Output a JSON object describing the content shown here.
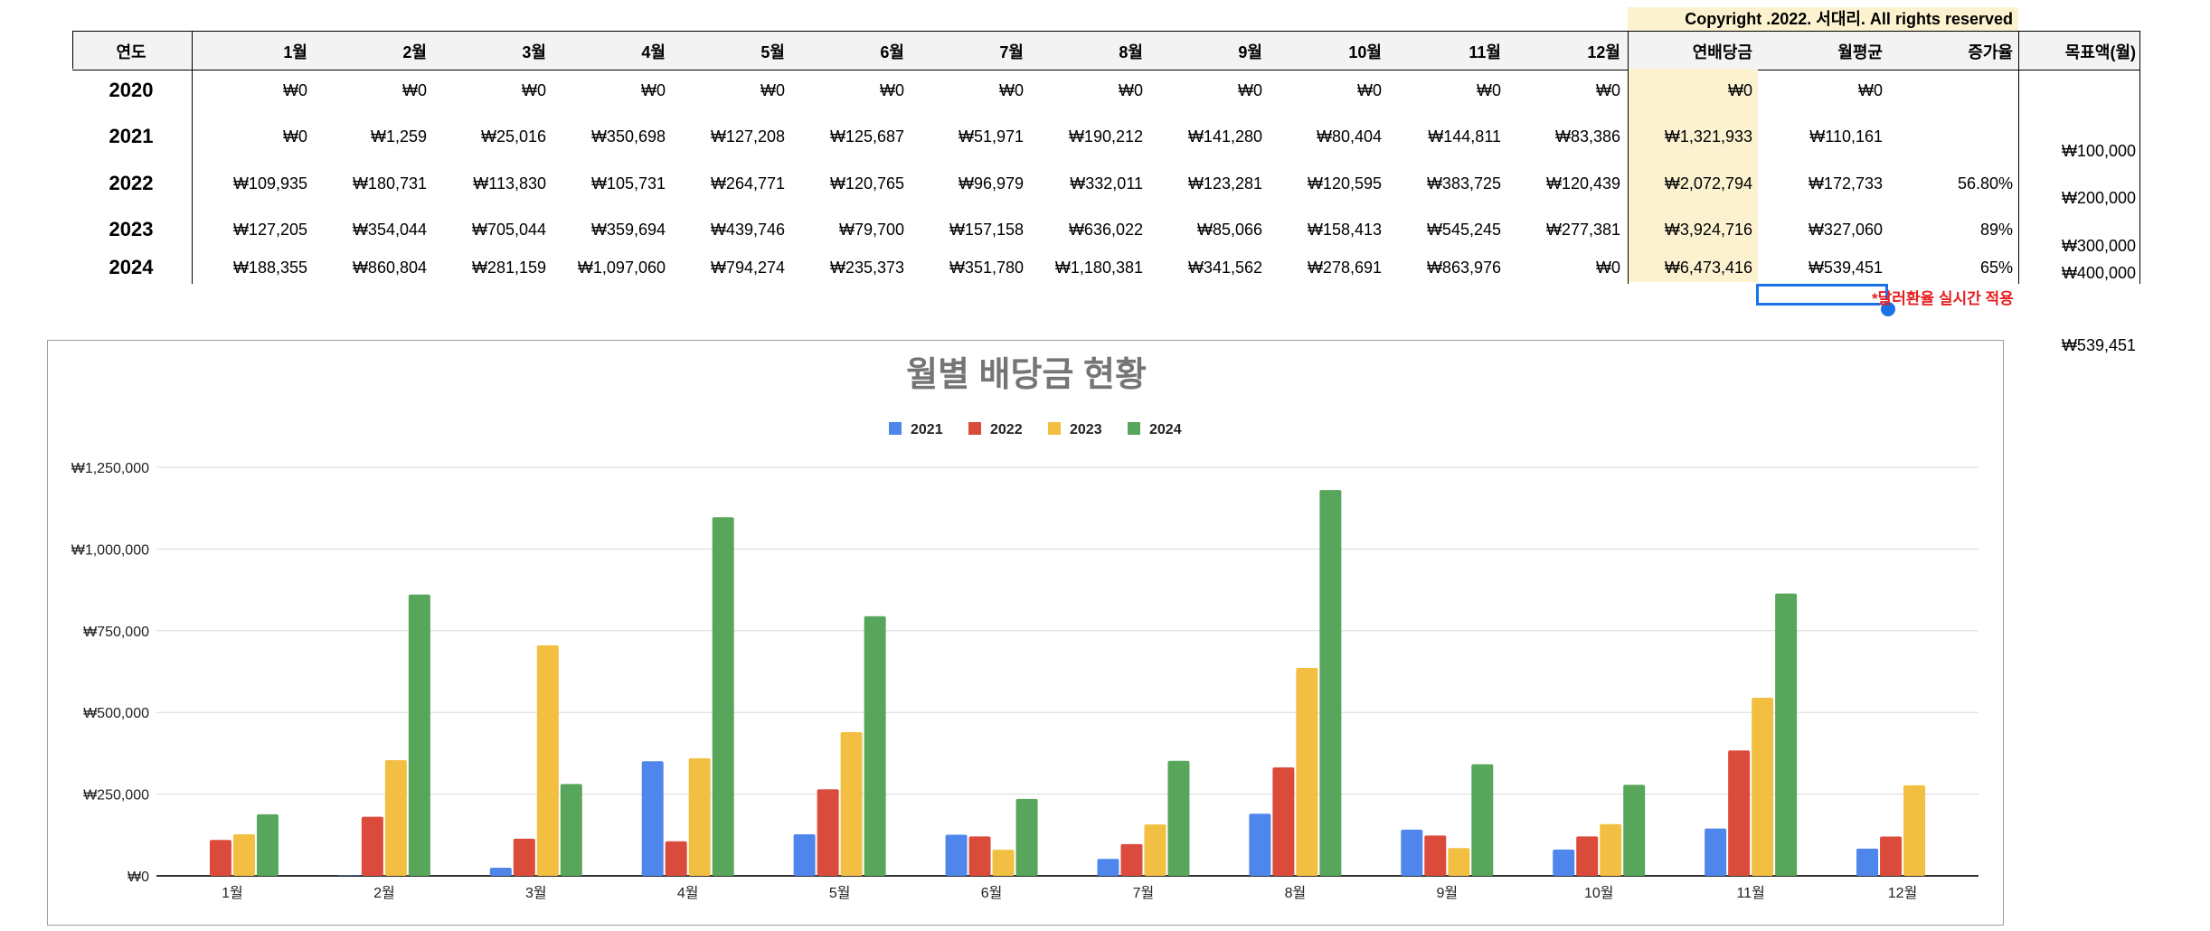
{
  "table": {
    "copyright": "Copyright .2022. 서대리. All rights reserved",
    "headers": [
      "연도",
      "1월",
      "2월",
      "3월",
      "4월",
      "5월",
      "6월",
      "7월",
      "8월",
      "9월",
      "10월",
      "11월",
      "12월",
      "연배당금",
      "월평균",
      "증가율",
      "목표액(월)"
    ],
    "rows": [
      {
        "year": "2020",
        "cells": [
          "₩0",
          "₩0",
          "₩0",
          "₩0",
          "₩0",
          "₩0",
          "₩0",
          "₩0",
          "₩0",
          "₩0",
          "₩0",
          "₩0",
          "₩0",
          "₩0",
          ""
        ]
      },
      {
        "year": "2021",
        "cells": [
          "₩0",
          "₩1,259",
          "₩25,016",
          "₩350,698",
          "₩127,208",
          "₩125,687",
          "₩51,971",
          "₩190,212",
          "₩141,280",
          "₩80,404",
          "₩144,811",
          "₩83,386",
          "₩1,321,933",
          "₩110,161",
          ""
        ]
      },
      {
        "year": "2022",
        "cells": [
          "₩109,935",
          "₩180,731",
          "₩113,830",
          "₩105,731",
          "₩264,771",
          "₩120,765",
          "₩96,979",
          "₩332,011",
          "₩123,281",
          "₩120,595",
          "₩383,725",
          "₩120,439",
          "₩2,072,794",
          "₩172,733",
          "56.80%"
        ]
      },
      {
        "year": "2023",
        "cells": [
          "₩127,205",
          "₩354,044",
          "₩705,044",
          "₩359,694",
          "₩439,746",
          "₩79,700",
          "₩157,158",
          "₩636,022",
          "₩85,066",
          "₩158,413",
          "₩545,245",
          "₩277,381",
          "₩3,924,716",
          "₩327,060",
          "89%"
        ]
      },
      {
        "year": "2024",
        "cells": [
          "₩188,355",
          "₩860,804",
          "₩281,159",
          "₩1,097,060",
          "₩794,274",
          "₩235,373",
          "₩351,780",
          "₩1,180,381",
          "₩341,562",
          "₩278,691",
          "₩863,976",
          "₩0",
          "₩6,473,416",
          "₩539,451",
          "65%"
        ]
      }
    ],
    "goals": [
      "₩100,000",
      "₩200,000",
      "₩300,000",
      "₩400,000",
      "₩539,451"
    ],
    "note": "*달러환율 실시간 적용"
  },
  "chart_data": {
    "type": "bar",
    "title": "월별 배당금 현황",
    "categories": [
      "1월",
      "2월",
      "3월",
      "4월",
      "5월",
      "6월",
      "7월",
      "8월",
      "9월",
      "10월",
      "11월",
      "12월"
    ],
    "series": [
      {
        "name": "2021",
        "color": "#4e86ec",
        "values": [
          0,
          1259,
          25016,
          350698,
          127208,
          125687,
          51971,
          190212,
          141280,
          80404,
          144811,
          83386
        ]
      },
      {
        "name": "2022",
        "color": "#db4b3c",
        "values": [
          109935,
          180731,
          113830,
          105731,
          264771,
          120765,
          96979,
          332011,
          123281,
          120595,
          383725,
          120439
        ]
      },
      {
        "name": "2023",
        "color": "#f2bf42",
        "values": [
          127205,
          354044,
          705044,
          359694,
          439746,
          79700,
          157158,
          636022,
          85066,
          158413,
          545245,
          277381
        ]
      },
      {
        "name": "2024",
        "color": "#58a65c",
        "values": [
          188355,
          860804,
          281159,
          1097060,
          794274,
          235373,
          351780,
          1180381,
          341562,
          278691,
          863976,
          0
        ]
      }
    ],
    "ylim": [
      0,
      1250000
    ],
    "yticks": [
      "₩0",
      "₩250,000",
      "₩500,000",
      "₩750,000",
      "₩1,000,000",
      "₩1,250,000"
    ],
    "legend": "top-center",
    "grid": true
  }
}
